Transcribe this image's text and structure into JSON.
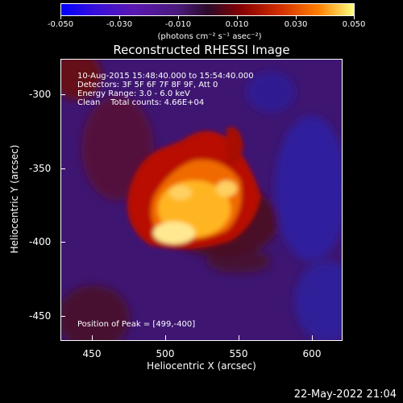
{
  "colorbar": {
    "ticks": [
      "-0.050",
      "-0.030",
      "-0.010",
      "0.010",
      "0.030",
      "0.050"
    ],
    "units": "(photons cm⁻² s⁻¹ asec⁻²)"
  },
  "title": "Reconstructed RHESSI Image",
  "info": {
    "time": "10-Aug-2015 15:48:40.000 to 15:54:40.000",
    "detectors": "Detectors: 3F 5F 6F 7F 8F 9F, Att 0",
    "energy": "Energy Range: 3.0 - 6.0 keV",
    "clean": "Clean    Total counts: 4.66E+04",
    "peak": "Position of Peak = [499,-400]"
  },
  "axes": {
    "xlabel": "Heliocentric X (arcsec)",
    "ylabel": "Heliocentric Y (arcsec)",
    "xticks": [
      "450",
      "500",
      "550",
      "600"
    ],
    "yticks": [
      "-300",
      "-350",
      "-400",
      "-450"
    ]
  },
  "datestamp": "22-May-2022 21:04"
}
